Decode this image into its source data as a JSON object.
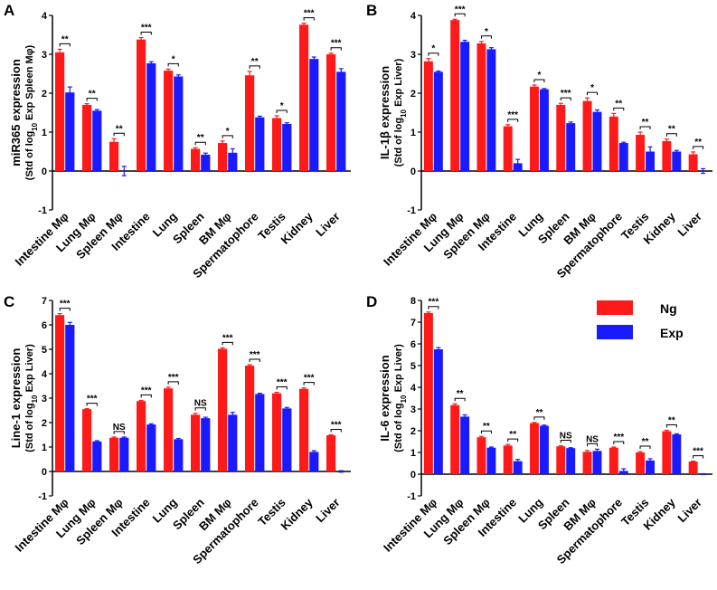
{
  "colors": {
    "ng": "#ff1a1a",
    "exp": "#1a1aff",
    "axis": "#000000"
  },
  "legend": {
    "ng": "Ng",
    "exp": "Exp"
  },
  "chart_data": [
    {
      "panel": "A",
      "type": "bar",
      "ylabel": "miR365 expression",
      "ylabel_sub_pre": "(Std of log",
      "ylabel_sub_sub": "10",
      "ylabel_sub_post": " Exp Spleen Mφ)",
      "ylim": [
        -1,
        4
      ],
      "ticks": [
        -1,
        0,
        1,
        2,
        3,
        4
      ],
      "categories": [
        "Intestine Mφ",
        "Lung Mφ",
        "Spleen Mφ",
        "Intestine",
        "Lung",
        "Spleen",
        "BM Mφ",
        "Spermatophore",
        "Testis",
        "Kidney",
        "Liver"
      ],
      "series": [
        {
          "name": "Ng",
          "values": [
            3.05,
            1.7,
            0.75,
            3.38,
            2.58,
            0.57,
            0.72,
            2.46,
            1.36,
            3.76,
            3.0
          ],
          "errors": [
            0.08,
            0.03,
            0.08,
            0.05,
            0.04,
            0.03,
            0.05,
            0.1,
            0.06,
            0.04,
            0.03
          ]
        },
        {
          "name": "Exp",
          "values": [
            2.02,
            1.55,
            0.0,
            2.77,
            2.43,
            0.42,
            0.47,
            1.38,
            1.21,
            2.88,
            2.55
          ],
          "errors": [
            0.14,
            0.03,
            0.12,
            0.04,
            0.04,
            0.04,
            0.1,
            0.03,
            0.03,
            0.05,
            0.08
          ]
        }
      ],
      "significance": [
        "**",
        "**",
        "**",
        "***",
        "*",
        "**",
        "*",
        "**",
        "*",
        "***",
        "***"
      ]
    },
    {
      "panel": "B",
      "type": "bar",
      "ylabel": "IL-1β expression",
      "ylabel_sub_pre": "(Std of log",
      "ylabel_sub_sub": "10",
      "ylabel_sub_post": " Exp Liver)",
      "ylim": [
        -1,
        4
      ],
      "ticks": [
        -1,
        0,
        1,
        2,
        3,
        4
      ],
      "categories": [
        "Intestine Mφ",
        "Lung Mφ",
        "Spleen Mφ",
        "Intestine",
        "Lung",
        "Spleen",
        "BM Mφ",
        "Spermatophore",
        "Testis",
        "Kidney",
        "Liver"
      ],
      "series": [
        {
          "name": "Ng",
          "values": [
            2.82,
            3.88,
            3.28,
            1.15,
            2.17,
            1.7,
            1.8,
            1.4,
            0.93,
            0.77,
            0.43
          ],
          "errors": [
            0.07,
            0.02,
            0.05,
            0.04,
            0.04,
            0.04,
            0.08,
            0.08,
            0.07,
            0.05,
            0.06
          ]
        },
        {
          "name": "Exp",
          "values": [
            2.55,
            3.32,
            3.13,
            0.2,
            2.1,
            1.23,
            1.52,
            0.72,
            0.5,
            0.5,
            0.0
          ],
          "errors": [
            0.02,
            0.04,
            0.04,
            0.1,
            0.02,
            0.03,
            0.05,
            0.02,
            0.12,
            0.03,
            0.06
          ]
        }
      ],
      "significance": [
        "*",
        "***",
        "*",
        "***",
        "*",
        "***",
        "*",
        "**",
        "**",
        "**",
        "**"
      ]
    },
    {
      "panel": "C",
      "type": "bar",
      "ylabel": "Line-1 expression",
      "ylabel_sub_pre": "(Std of log",
      "ylabel_sub_sub": "10",
      "ylabel_sub_post": " Exp Liver)",
      "ylim": [
        -1,
        7
      ],
      "ticks": [
        -1,
        0,
        1,
        2,
        3,
        4,
        5,
        6,
        7
      ],
      "categories": [
        "Intestine Mφ",
        "Lung Mφ",
        "Spleen Mφ",
        "Intestine",
        "Lung",
        "Spleen",
        "BM Mφ",
        "Spermatophore",
        "Testis",
        "Kidney",
        "Liver"
      ],
      "series": [
        {
          "name": "Ng",
          "values": [
            6.4,
            2.55,
            1.38,
            2.88,
            3.4,
            2.32,
            5.02,
            4.33,
            3.2,
            3.38,
            1.48
          ],
          "errors": [
            0.06,
            0.02,
            0.03,
            0.03,
            0.05,
            0.06,
            0.04,
            0.04,
            0.04,
            0.04,
            0.02
          ]
        },
        {
          "name": "Exp",
          "values": [
            6.0,
            1.23,
            1.38,
            1.92,
            1.32,
            2.18,
            2.32,
            3.17,
            2.58,
            0.8,
            0.0
          ],
          "errors": [
            0.1,
            0.03,
            0.03,
            0.03,
            0.03,
            0.04,
            0.1,
            0.03,
            0.04,
            0.05,
            0.03
          ]
        }
      ],
      "significance": [
        "***",
        "***",
        "NS",
        "***",
        "***",
        "NS",
        "***",
        "***",
        "***",
        "***",
        "***"
      ]
    },
    {
      "panel": "D",
      "type": "bar",
      "ylabel": "IL-6 expression",
      "ylabel_sub_pre": "(Std of log",
      "ylabel_sub_sub": "10",
      "ylabel_sub_post": " Exp Liver)",
      "ylim": [
        -1,
        8
      ],
      "ticks": [
        -1,
        0,
        1,
        2,
        3,
        4,
        5,
        6,
        7,
        8
      ],
      "categories": [
        "Intestine Mφ",
        "Lung Mφ",
        "Spleen Mφ",
        "Intestine",
        "Lung",
        "Spleen",
        "BM Mφ",
        "Spermatophore",
        "Testis",
        "Kidney",
        "Liver"
      ],
      "series": [
        {
          "name": "Ng",
          "values": [
            7.42,
            3.18,
            1.7,
            1.32,
            2.35,
            1.28,
            1.03,
            1.22,
            1.0,
            1.98,
            0.58
          ],
          "errors": [
            0.05,
            0.06,
            0.04,
            0.05,
            0.03,
            0.03,
            0.06,
            0.03,
            0.04,
            0.04,
            0.02
          ]
        },
        {
          "name": "Exp",
          "values": [
            5.75,
            2.65,
            1.22,
            0.6,
            2.23,
            1.2,
            1.07,
            0.15,
            0.63,
            1.83,
            0.0
          ],
          "errors": [
            0.08,
            0.08,
            0.03,
            0.08,
            0.03,
            0.02,
            0.08,
            0.1,
            0.08,
            0.03,
            0.02
          ]
        }
      ],
      "significance": [
        "***",
        "**",
        "**",
        "**",
        "**",
        "NS",
        "NS",
        "***",
        "**",
        "**",
        "***"
      ]
    }
  ]
}
